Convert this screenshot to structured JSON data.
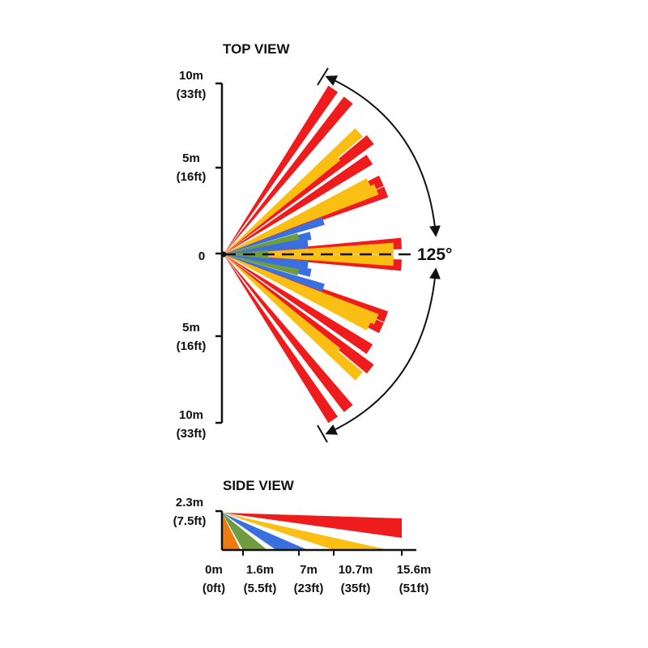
{
  "top_view": {
    "title": "TOP VIEW",
    "ticks": [
      {
        "line1": "10m",
        "line2": "(33ft)"
      },
      {
        "line1": "5m",
        "line2": "(16ft)"
      },
      {
        "line1": "0",
        "line2": ""
      },
      {
        "line1": "5m",
        "line2": "(16ft)"
      },
      {
        "line1": "10m",
        "line2": "(33ft)"
      }
    ],
    "coverage_angle": "125°"
  },
  "side_view": {
    "title": "SIDE VIEW",
    "height_label": {
      "line1": "2.3m",
      "line2": "(7.5ft)"
    },
    "distance_ticks": [
      {
        "line1": "0m",
        "line2": "(0ft)"
      },
      {
        "line1": "1.6m",
        "line2": "(5.5ft)"
      },
      {
        "line1": "7m",
        "line2": "(23ft)"
      },
      {
        "line1": "10.7m",
        "line2": "(35ft)"
      },
      {
        "line1": "15.6m",
        "line2": "(51ft)"
      }
    ]
  },
  "colors": {
    "red": "#ee1c1c",
    "yellow": "#fbbf14",
    "blue": "#3a6fe0",
    "green": "#6e9c3f",
    "orange": "#f07a10",
    "ink": "#111111"
  }
}
